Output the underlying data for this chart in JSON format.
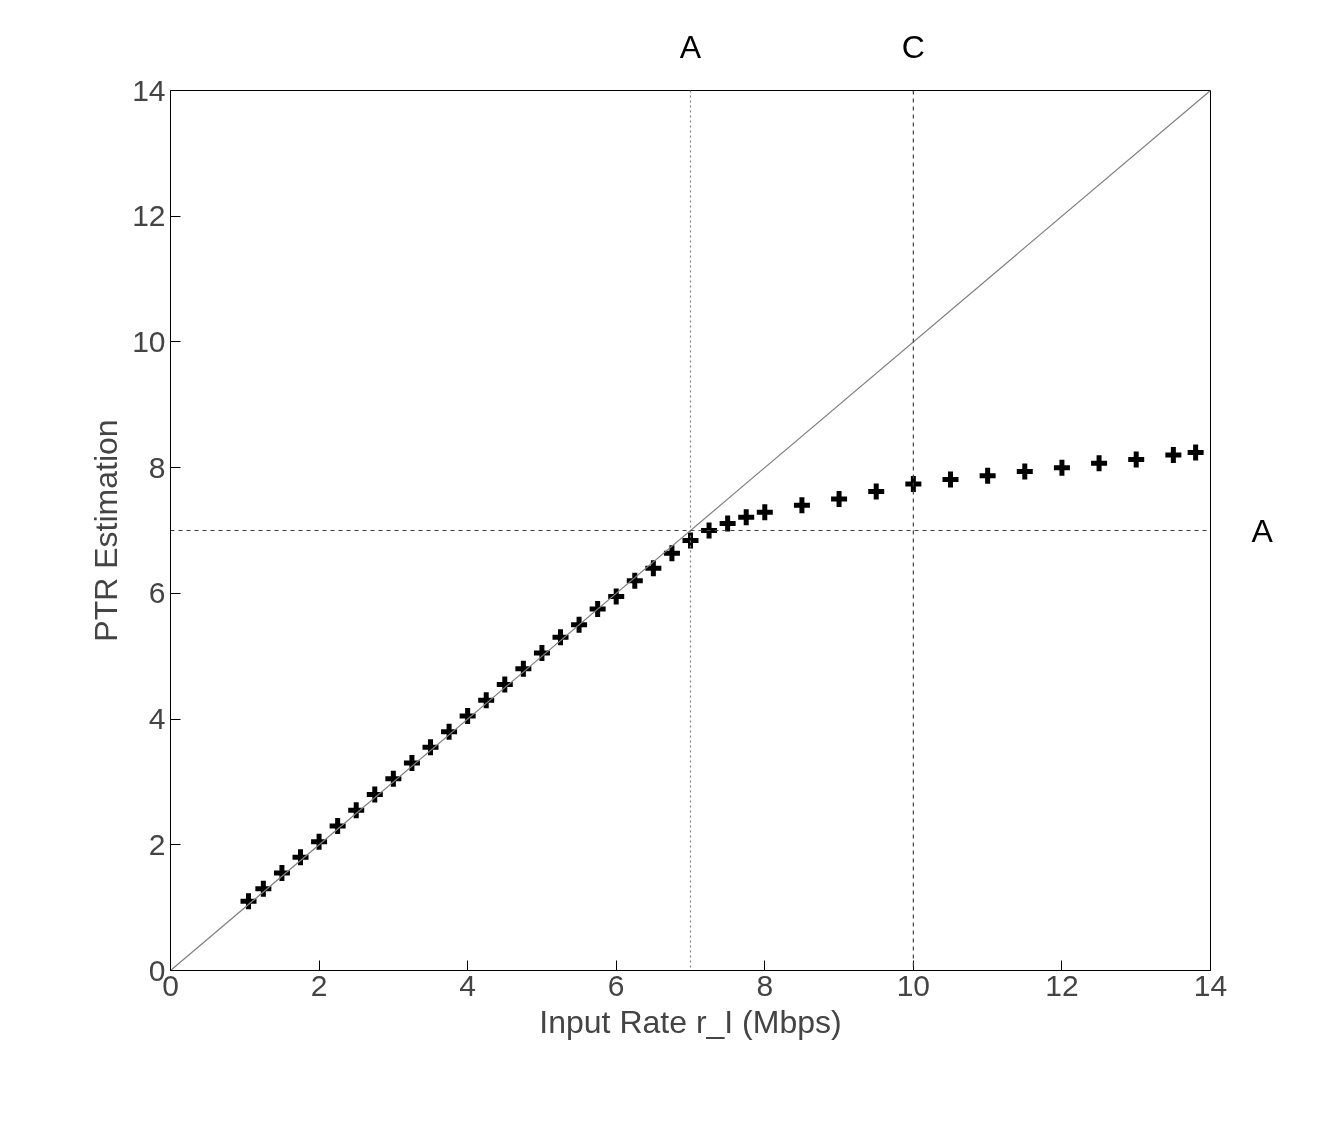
{
  "chart_data": {
    "type": "scatter",
    "xlabel": "Input Rate r_I (Mbps)",
    "ylabel": "PTR Estimation",
    "xlim": [
      0,
      14
    ],
    "ylim": [
      0,
      14
    ],
    "xticks": [
      0,
      2,
      4,
      6,
      8,
      10,
      12,
      14
    ],
    "yticks": [
      0,
      2,
      4,
      6,
      8,
      10,
      12,
      14
    ],
    "grid": false,
    "series": [
      {
        "marker": "cross",
        "color": "#000000",
        "x": [
          1.05,
          1.25,
          1.5,
          1.75,
          2.0,
          2.25,
          2.5,
          2.75,
          3.0,
          3.25,
          3.5,
          3.75,
          4.0,
          4.25,
          4.5,
          4.75,
          5.0,
          5.25,
          5.5,
          5.75,
          6.0,
          6.25,
          6.5,
          6.75,
          7.0,
          7.25,
          7.5,
          7.75,
          8.0,
          8.5,
          9.0,
          9.5,
          10.0,
          10.5,
          11.0,
          11.5,
          12.0,
          12.5,
          13.0,
          13.5,
          13.8
        ],
        "values": [
          1.1,
          1.3,
          1.55,
          1.8,
          2.05,
          2.3,
          2.55,
          2.8,
          3.05,
          3.3,
          3.55,
          3.8,
          4.05,
          4.3,
          4.55,
          4.8,
          5.05,
          5.3,
          5.5,
          5.75,
          5.95,
          6.2,
          6.4,
          6.64,
          6.84,
          7.0,
          7.11,
          7.21,
          7.29,
          7.4,
          7.5,
          7.62,
          7.74,
          7.81,
          7.87,
          7.94,
          8.0,
          8.07,
          8.13,
          8.2,
          8.24
        ]
      },
      {
        "type": "line",
        "color": "#808080",
        "x": [
          0,
          14
        ],
        "values": [
          0,
          14
        ]
      }
    ],
    "ref_lines": [
      {
        "axis": "x",
        "value": 7,
        "label": "A",
        "color": "#808080",
        "line_style": "dotted"
      },
      {
        "axis": "x",
        "value": 10,
        "label": "C",
        "color": "#404040",
        "line_style": "dashed"
      },
      {
        "axis": "y",
        "value": 7,
        "label": "A",
        "color": "#404040",
        "line_style": "dashed"
      }
    ]
  }
}
